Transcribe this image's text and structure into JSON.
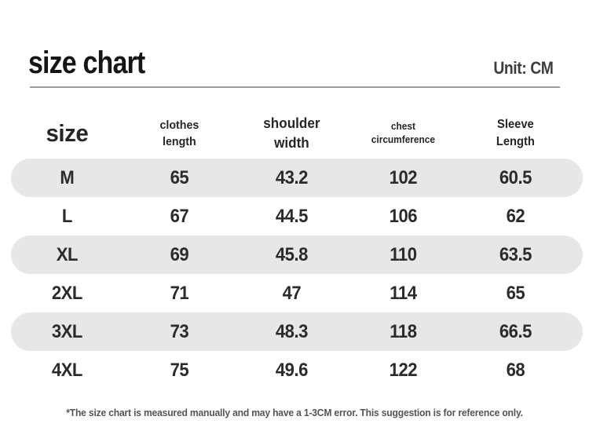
{
  "header": {
    "title": "size chart",
    "unit": "Unit: CM"
  },
  "chart_data": {
    "type": "table",
    "title": "size chart",
    "unit": "CM",
    "columns": [
      "size",
      "clothes length",
      "shoulder width",
      "chest circumference",
      "Sleeve Length"
    ],
    "column_lines": [
      [
        "size"
      ],
      [
        "clothes",
        "length"
      ],
      [
        "shoulder",
        "width"
      ],
      [
        "chest",
        "circumference"
      ],
      [
        "Sleeve",
        "Length"
      ]
    ],
    "rows": [
      {
        "size": "M",
        "clothes_length": "65",
        "shoulder_width": "43.2",
        "chest_circumference": "102",
        "sleeve_length": "60.5"
      },
      {
        "size": "L",
        "clothes_length": "67",
        "shoulder_width": "44.5",
        "chest_circumference": "106",
        "sleeve_length": "62"
      },
      {
        "size": "XL",
        "clothes_length": "69",
        "shoulder_width": "45.8",
        "chest_circumference": "110",
        "sleeve_length": "63.5"
      },
      {
        "size": "2XL",
        "clothes_length": "71",
        "shoulder_width": "47",
        "chest_circumference": "114",
        "sleeve_length": "65"
      },
      {
        "size": "3XL",
        "clothes_length": "73",
        "shoulder_width": "48.3",
        "chest_circumference": "118",
        "sleeve_length": "66.5"
      },
      {
        "size": "4XL",
        "clothes_length": "75",
        "shoulder_width": "49.6",
        "chest_circumference": "122",
        "sleeve_length": "68"
      }
    ],
    "striped_row_indices": [
      0,
      2,
      4
    ]
  },
  "footnote": "*The size chart is measured manually and may have a 1-3CM error. This suggestion is for reference only.",
  "colors": {
    "stripe": "#e7e7e7",
    "text": "#2b2b2b",
    "divider": "#9a9a9a",
    "footnote": "#555555",
    "background": "#ffffff"
  }
}
